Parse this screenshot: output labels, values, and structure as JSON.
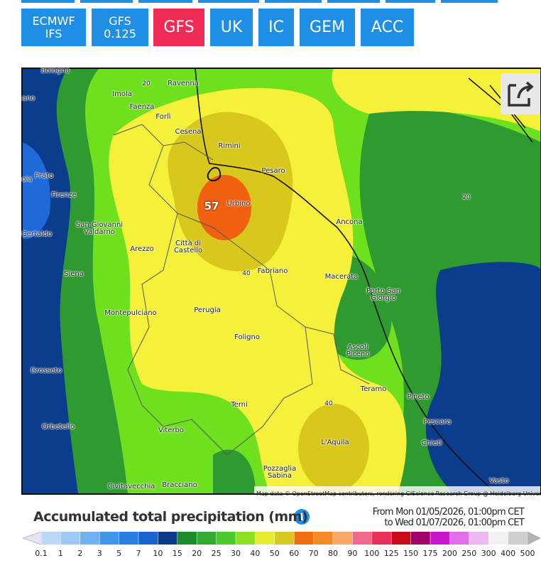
{
  "buttons": [
    {
      "label": "ECMWF IFS"
    },
    {
      "label": "GFS 0.125"
    },
    {
      "label": "GFS",
      "active": true
    },
    {
      "label": "UK"
    },
    {
      "label": "IC"
    },
    {
      "label": "GEM"
    },
    {
      "label": "ACC"
    }
  ],
  "map": {
    "cities": [
      "Bologna",
      "Ravenna",
      "Imola",
      "Faenza",
      "Forlì",
      "Cesena",
      "Rimini",
      "Pesaro",
      "Prato",
      "Firenze",
      "Urbino",
      "Ancona",
      "San Giovanni Valdarno",
      "Certaldo",
      "Arezzo",
      "Città di Castello",
      "Siena",
      "Fabriano",
      "Macerata",
      "Porto San Giorgio",
      "Montepulciano",
      "Perugia",
      "Foligno",
      "Ascoli Piceno",
      "Grosseto",
      "Teramo",
      "Pineto",
      "Terni",
      "Pescara",
      "Orbetello",
      "Viterbo",
      "L'Aquila",
      "Chieti",
      "Pozzaglia Sabina",
      "Civitavecchia",
      "Bracciano",
      "Vasto",
      "ano",
      "oia"
    ],
    "contour_labels": [
      "20",
      "20",
      "40",
      "40"
    ],
    "max_label": "57",
    "attribution": "Map data © OpenStreetMap contributors, rendering GIScience Research Group @ Heidelberg University"
  },
  "legend": {
    "title": "Accumulated total precipitation (mm)",
    "from": "From Mon 01/05/2026, 01:00pm CET",
    "to": "to Wed 01/07/2026, 01:00pm CET",
    "ticks": [
      "0.1",
      "1",
      "2",
      "3",
      "5",
      "7",
      "10",
      "15",
      "20",
      "25",
      "30",
      "40",
      "50",
      "60",
      "70",
      "80",
      "90",
      "100",
      "125",
      "150",
      "175",
      "200",
      "250",
      "300",
      "400",
      "500"
    ],
    "under_color": "#e4e4f4",
    "over_color": "#b4b4b4",
    "colors": [
      "#bcd8f6",
      "#9ccaf4",
      "#6fb2f0",
      "#3f96ea",
      "#2a7ee0",
      "#1a62cc",
      "#0c3a86",
      "#1f8a2a",
      "#37a832",
      "#4cc830",
      "#8ee020",
      "#e8ec30",
      "#d8c820",
      "#f06e10",
      "#f58a28",
      "#f8a86a",
      "#f06a8c",
      "#e8305c",
      "#c80c1c",
      "#a0006a",
      "#c818c8",
      "#e070e8",
      "#f0b8f0",
      "#f4f0f4",
      "#cfcfcf"
    ]
  }
}
